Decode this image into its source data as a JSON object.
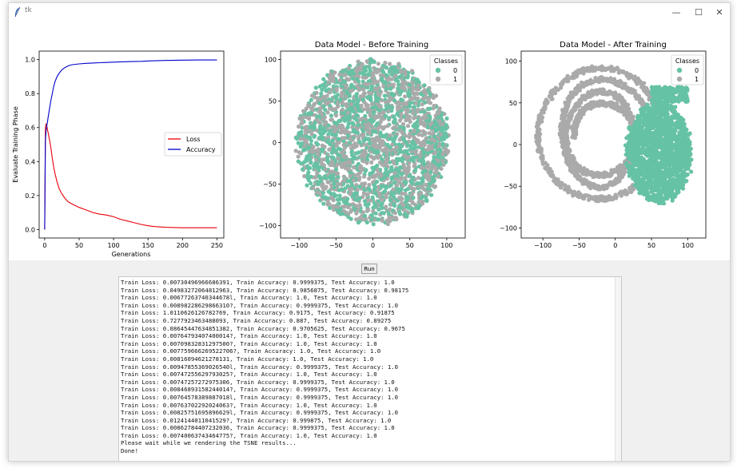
{
  "window": {
    "title": "tk",
    "icon": "feather-icon",
    "controls": {
      "minimize": "—",
      "maximize": "☐",
      "close": "✕"
    }
  },
  "run_button": {
    "label": "Run"
  },
  "chart_data": [
    {
      "type": "line",
      "title": "",
      "xlabel": "Generations",
      "ylabel": "Evaluate Training Phase",
      "xlim": [
        -8,
        260
      ],
      "ylim": [
        -0.05,
        1.05
      ],
      "xticks": [
        "0",
        "50",
        "100",
        "150",
        "200",
        "250"
      ],
      "yticks": [
        "0.0",
        "0.2",
        "0.4",
        "0.6",
        "0.8",
        "1.0"
      ],
      "legend_position": "center-right",
      "series": [
        {
          "name": "Loss",
          "color": "#e8000b",
          "x": [
            0,
            1,
            2,
            3,
            4,
            5,
            7,
            9,
            11,
            13,
            15,
            18,
            21,
            25,
            30,
            35,
            40,
            50,
            60,
            70,
            80,
            90,
            100,
            110,
            120,
            130,
            140,
            150,
            160,
            175,
            200,
            225,
            250
          ],
          "y": [
            0.0,
            0.6,
            0.62,
            0.61,
            0.59,
            0.57,
            0.53,
            0.48,
            0.42,
            0.37,
            0.33,
            0.28,
            0.24,
            0.21,
            0.18,
            0.16,
            0.15,
            0.13,
            0.115,
            0.1,
            0.09,
            0.085,
            0.075,
            0.06,
            0.05,
            0.04,
            0.03,
            0.022,
            0.017,
            0.013,
            0.01,
            0.01,
            0.01
          ]
        },
        {
          "name": "Accuracy",
          "color": "#0000cc",
          "x": [
            0,
            1,
            2,
            3,
            4,
            5,
            7,
            9,
            11,
            13,
            15,
            18,
            21,
            25,
            30,
            35,
            40,
            50,
            60,
            70,
            80,
            100,
            120,
            140,
            150,
            175,
            200,
            225,
            250
          ],
          "y": [
            0.0,
            0.52,
            0.58,
            0.61,
            0.63,
            0.66,
            0.71,
            0.76,
            0.8,
            0.84,
            0.87,
            0.9,
            0.92,
            0.94,
            0.955,
            0.965,
            0.97,
            0.975,
            0.978,
            0.98,
            0.982,
            0.985,
            0.988,
            0.99,
            0.992,
            0.995,
            0.997,
            0.998,
            0.998
          ]
        }
      ]
    },
    {
      "type": "scatter",
      "title": "Data Model - Before Training",
      "xlabel": "",
      "ylabel": "",
      "xlim": [
        -125,
        125
      ],
      "ylim": [
        -115,
        110
      ],
      "xticks": [
        "−100",
        "−50",
        "0",
        "50",
        "100"
      ],
      "yticks": [
        "−100",
        "−50",
        "0",
        "50",
        "100"
      ],
      "legend_title": "Classes",
      "legend_position": "top-right",
      "legend": [
        {
          "label": "0",
          "color": "#66c2a5"
        },
        {
          "label": "1",
          "color": "#aaaaaa"
        }
      ]
    },
    {
      "type": "scatter",
      "title": "Data Model - After Training",
      "xlabel": "",
      "ylabel": "",
      "xlim": [
        -130,
        125
      ],
      "ylim": [
        -112,
        112
      ],
      "xticks": [
        "−100",
        "−50",
        "0",
        "50",
        "100"
      ],
      "yticks": [
        "−100",
        "−50",
        "0",
        "50",
        "100"
      ],
      "legend_title": "Classes",
      "legend_position": "top-right",
      "legend": [
        {
          "label": "0",
          "color": "#66c2a5"
        },
        {
          "label": "1",
          "color": "#aaaaaa"
        }
      ]
    }
  ],
  "console": {
    "lines": [
      "Train Loss: 0.00730496966686391, Train Accuracy: 0.9999375, Test Accuracy: 1.0",
      "Train Loss: 0.04983272064812963, Train Accuracy: 0.9856875, Test Accuracy: 0.98175",
      "Train Loss: 0.00677263740344678l, Train Accuracy: 1.0, Test Accuracy: 1.0",
      "Train Loss: 0.00898228629866310?, Train Accuracy: 0.9999375, Test Accuracy: 1.0",
      "Train Loss: 1.0110626126782769, Train Accuracy: 0.9175, Test Accuracy: 0.91875",
      "Train Loss: 0.7277923463488093, Train Accuracy: 0.887, Test Accuracy: 0.89275",
      "Train Loss: 0.08645447634851382, Train Accuracy: 0.9705625, Test Accuracy: 0.9675",
      "Train Loss: 0.00764793407400014?, Train Accuracy: 1.0, Test Accuracy: 1.0",
      "Train Loss: 0.00709832831297500?, Train Accuracy: 1.0, Test Accuracy: 1.0",
      "Train Loss: 0.007759666269522706?, Train Accuracy: 1.0, Test Accuracy: 1.0",
      "Train Loss: 0.00816094621278131, Train Accuracy: 1.0, Test Accuracy: 1.0",
      "Train Loss: 0.00947855369026540l, Train Accuracy: 0.9999375, Test Accuracy: 1.0",
      "Train Loss: 0.00747255629793025?, Train Accuracy: 1.0, Test Accuracy: 1.0",
      "Train Loss: 0.00747257272975306, Train Accuracy: 0.9999375, Test Accuracy: 1.0",
      "Train Loss: 0.00846893158244014?, Train Accuracy: 0.9999375, Test Accuracy: 1.0",
      "Train Loss: 0.00764578389887018l, Train Accuracy: 0.9999375, Test Accuracy: 1.0",
      "Train Loss: 0.00763702292024063?, Train Accuracy: 1.0, Test Accuracy: 1.0",
      "Train Loss: 0.00825751695896629l, Train Accuracy: 0.9999375, Test Accuracy: 1.0",
      "Train Loss: 0.0124144011041529?, Train Accuracy: 0.999875, Test Accuracy: 1.0",
      "Train Loss: 0.00862784407232036, Train Accuracy: 0.9999375, Test Accuracy: 1.0",
      "Train Loss: 0.00740063743464775?, Train Accuracy: 1.0, Test Accuracy: 1.0",
      "Please wait while we rendering the TSNE results...",
      "Done!"
    ]
  }
}
